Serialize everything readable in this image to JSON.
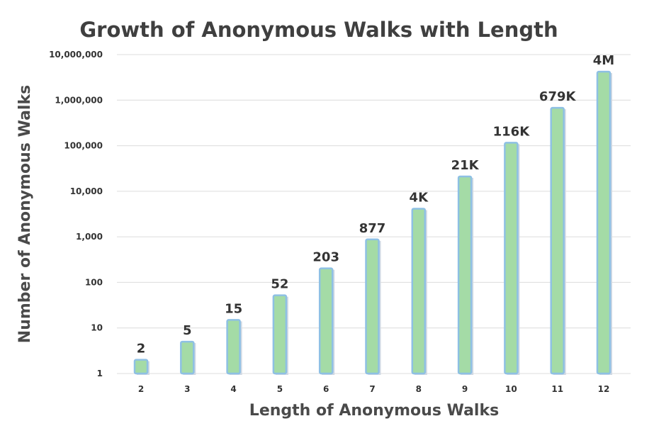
{
  "chart_data": {
    "type": "bar",
    "title": "Growth of Anonymous Walks with Length",
    "xlabel": "Length of Anonymous Walks",
    "ylabel": "Number of Anonymous Walks",
    "y_scale": "log",
    "ylim": [
      1,
      10000000
    ],
    "y_ticks": [
      1,
      10,
      100,
      1000,
      10000,
      100000,
      1000000,
      10000000
    ],
    "y_tick_labels": [
      "1",
      "10",
      "100",
      "1,000",
      "10,000",
      "100,000",
      "1,000,000",
      "10,000,000"
    ],
    "categories": [
      "2",
      "3",
      "4",
      "5",
      "6",
      "7",
      "8",
      "9",
      "10",
      "11",
      "12"
    ],
    "values": [
      2,
      5,
      15,
      52,
      203,
      877,
      4140,
      21147,
      115975,
      678570,
      4213597
    ],
    "data_labels": [
      "2",
      "5",
      "15",
      "52",
      "203",
      "877",
      "4K",
      "21K",
      "116K",
      "679K",
      "4M"
    ],
    "grid": true,
    "legend": "none",
    "colors": {
      "bar_fill": "#a4dba6",
      "bar_edge": "#8ec0e4",
      "text": "#333333"
    }
  }
}
